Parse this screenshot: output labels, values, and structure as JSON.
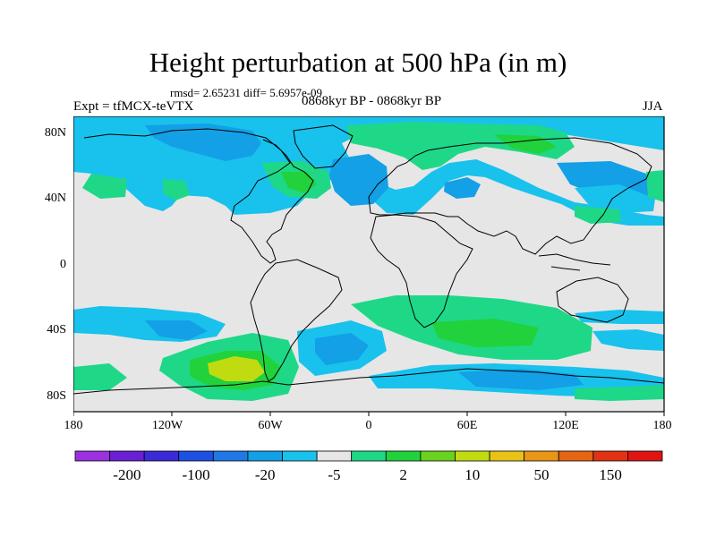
{
  "title": "Height perturbation at 500 hPa (in m)",
  "stats": "rmsd= 2.65231 diff= 5.6957e-09",
  "expt": "Expt = tfMCX-teVTX",
  "period": "0868kyr BP - 0868kyr BP",
  "season": "JJA",
  "lat_ticks": [
    "80N",
    "40N",
    "0",
    "40S",
    "80S"
  ],
  "lon_ticks": [
    "180",
    "120W",
    "60W",
    "0",
    "60E",
    "120E",
    "180"
  ],
  "colorbar": {
    "labels": [
      "-200",
      "-100",
      "-20",
      "-5",
      "2",
      "10",
      "50",
      "150"
    ],
    "colors": [
      "#9b30e0",
      "#6a1fd6",
      "#3a2ad8",
      "#1e50e4",
      "#1e78e6",
      "#13a0e6",
      "#18c2ec",
      "#e6e6e6",
      "#1ed888",
      "#21d23c",
      "#6ad21e",
      "#c0dc10",
      "#e8c214",
      "#e89614",
      "#e66414",
      "#e23214",
      "#e11414"
    ]
  },
  "legend_colors": {
    "neutral": "#e6e6e6",
    "light_blue": "#18c2ec",
    "mid_blue": "#13a0e6",
    "blue": "#1e78e6",
    "light_green": "#1ed888",
    "green": "#21d23c",
    "yellow_green": "#c0dc10"
  }
}
